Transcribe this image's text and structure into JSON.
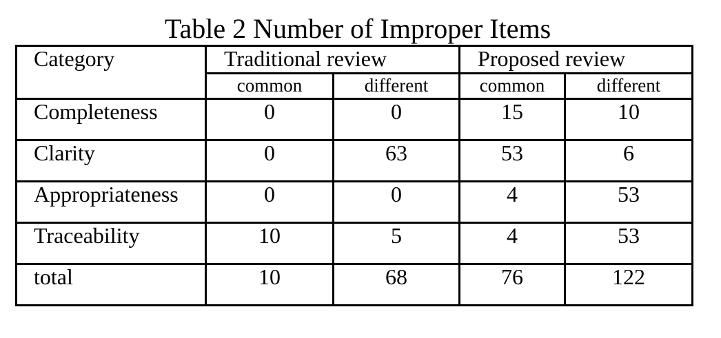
{
  "caption": "Table 2 Number of Improper Items",
  "header": {
    "category": "Category",
    "groups": [
      "Traditional review",
      "Proposed review"
    ],
    "subheaders": [
      "common",
      "different",
      "common",
      "different"
    ]
  },
  "rows": [
    {
      "category": "Completeness",
      "values": [
        "0",
        "0",
        "15",
        "10"
      ]
    },
    {
      "category": "Clarity",
      "values": [
        "0",
        "63",
        "53",
        "6"
      ]
    },
    {
      "category": "Appropriateness",
      "values": [
        "0",
        "0",
        "4",
        "53"
      ]
    },
    {
      "category": "Traceability",
      "values": [
        "10",
        "5",
        "4",
        "53"
      ]
    },
    {
      "category": "total",
      "values": [
        "10",
        "68",
        "76",
        "122"
      ]
    }
  ]
}
